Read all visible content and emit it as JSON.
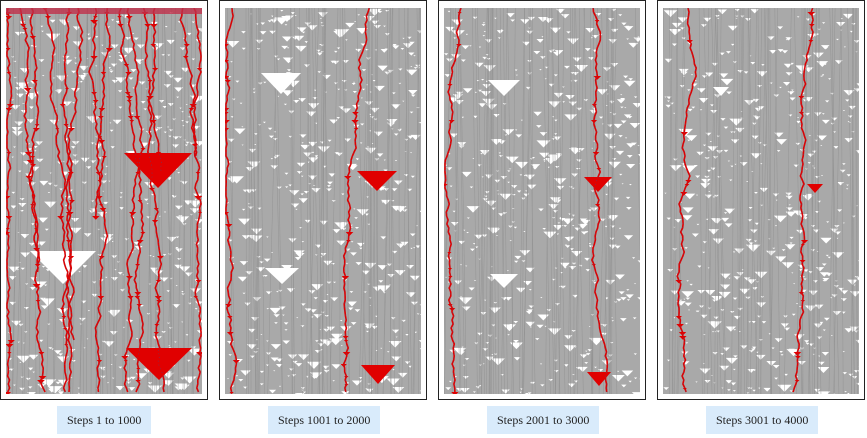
{
  "colors": {
    "background": "#ffffff",
    "cells": "#a9a9a9",
    "holes": "#ffffff",
    "highlight": "#e00000",
    "caption_bg": "#d9ebfb"
  },
  "panels": [
    {
      "caption": "Steps 1 to 1000"
    },
    {
      "caption": "Steps 1001 to 2000"
    },
    {
      "caption": "Steps 2001 to 3000"
    },
    {
      "caption": "Steps 3001 to 4000"
    }
  ]
}
